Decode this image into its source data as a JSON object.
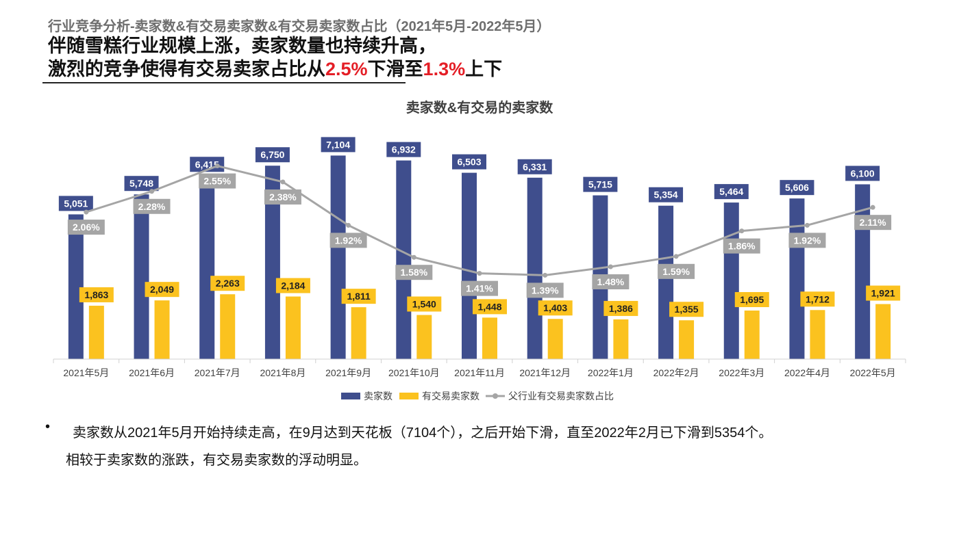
{
  "header": {
    "section_title": "行业竞争分析-卖家数&有交易卖家数&有交易卖家数占比（2021年5月-2022年5月）",
    "headline_line1": "伴随雪糕行业规模上涨，卖家数量也持续升高，",
    "headline_line2_a": "激烈的竞争使得有交易卖家占比从",
    "headline_hl1": "2.5%",
    "headline_line2_b": "下滑至",
    "headline_hl2": "1.3%",
    "headline_line2_c": "上下"
  },
  "chart_data": {
    "type": "bar",
    "title": "卖家数&有交易的卖家数",
    "categories": [
      "2021年5月",
      "2021年6月",
      "2021年7月",
      "2021年8月",
      "2021年9月",
      "2021年10月",
      "2021年11月",
      "2021年12月",
      "2022年1月",
      "2022年2月",
      "2022年3月",
      "2022年4月",
      "2022年5月"
    ],
    "series": [
      {
        "name": "卖家数",
        "kind": "bar",
        "color": "#3f4e8d",
        "values": [
          5051,
          5748,
          6415,
          6750,
          7104,
          6932,
          6503,
          6331,
          5715,
          5354,
          5464,
          5606,
          6100
        ],
        "labels": [
          "5,051",
          "5,748",
          "6,415",
          "6,750",
          "7,104",
          "6,932",
          "6,503",
          "6,331",
          "5,715",
          "5,354",
          "5,464",
          "5,606",
          "6,100"
        ]
      },
      {
        "name": "有交易卖家数",
        "kind": "bar",
        "color": "#fbc21f",
        "values": [
          1863,
          2049,
          2263,
          2184,
          1811,
          1540,
          1448,
          1403,
          1386,
          1355,
          1695,
          1712,
          1921
        ],
        "labels": [
          "1,863",
          "2,049",
          "2,263",
          "2,184",
          "1,811",
          "1,540",
          "1,448",
          "1,403",
          "1,386",
          "1,355",
          "1,695",
          "1,712",
          "1,921"
        ]
      },
      {
        "name": "父行业有交易卖家数占比",
        "kind": "line",
        "color": "#a5a5a5",
        "values": [
          2.06,
          2.28,
          2.55,
          2.38,
          1.92,
          1.58,
          1.41,
          1.39,
          1.48,
          1.59,
          1.86,
          1.92,
          2.11
        ],
        "labels": [
          "2.06%",
          "2.28%",
          "2.55%",
          "2.38%",
          "1.92%",
          "1.58%",
          "1.41%",
          "1.39%",
          "1.48%",
          "1.59%",
          "1.86%",
          "1.92%",
          "2.11%"
        ]
      }
    ],
    "bar_ylim": [
      0,
      7400
    ],
    "line_ylim": [
      0.5,
      2.75
    ],
    "legend_position": "bottom",
    "grid": false
  },
  "note": {
    "bullet": "•",
    "line1": "卖家数从2021年5月开始持续走高，在9月达到天花板（7104个），之后开始下滑，直至2022年2月已下滑到5354个。",
    "line2": "相较于卖家数的涨跌，有交易卖家数的浮动明显。"
  }
}
